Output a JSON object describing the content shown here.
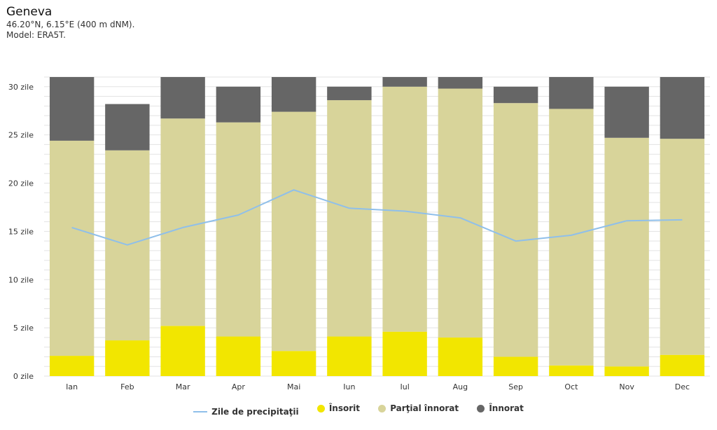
{
  "header": {
    "title": "Geneva",
    "coords": "46.20°N, 6.15°E (400 m dNM).",
    "model": "Model: ERA5T."
  },
  "colors": {
    "sunny": "#f2e600",
    "partly": "#d8d49a",
    "overcast": "#666666",
    "precip": "#8fbfea",
    "grid": "#e3e3e3"
  },
  "chart_data": {
    "type": "bar",
    "stacked": true,
    "categories": [
      "Ian",
      "Feb",
      "Mar",
      "Apr",
      "Mai",
      "Iun",
      "Iul",
      "Aug",
      "Sep",
      "Oct",
      "Nov",
      "Dec"
    ],
    "y_ticks": [
      "0 zile",
      "5 zile",
      "10 zile",
      "15 zile",
      "20 zile",
      "25 zile",
      "30 zile"
    ],
    "ylim": [
      0,
      31
    ],
    "grid": true,
    "legend_position": "bottom",
    "series": [
      {
        "name": "Însorit",
        "values": [
          2.1,
          3.7,
          5.2,
          4.1,
          2.6,
          4.1,
          4.6,
          4.0,
          2.0,
          1.1,
          1.0,
          2.2
        ]
      },
      {
        "name": "Parţial înnorat",
        "values": [
          22.3,
          19.7,
          21.5,
          22.2,
          24.8,
          24.5,
          25.4,
          25.8,
          26.3,
          26.6,
          23.7,
          22.4
        ]
      },
      {
        "name": "Înnorat",
        "values": [
          6.6,
          4.8,
          4.3,
          3.7,
          3.6,
          1.4,
          1.0,
          1.2,
          1.7,
          3.3,
          5.3,
          6.4
        ]
      }
    ],
    "line_series": {
      "name": "Zile de precipitaţii",
      "values": [
        15.4,
        13.6,
        15.4,
        16.7,
        19.3,
        17.4,
        17.1,
        16.4,
        14.0,
        14.6,
        16.1,
        16.2
      ]
    }
  }
}
